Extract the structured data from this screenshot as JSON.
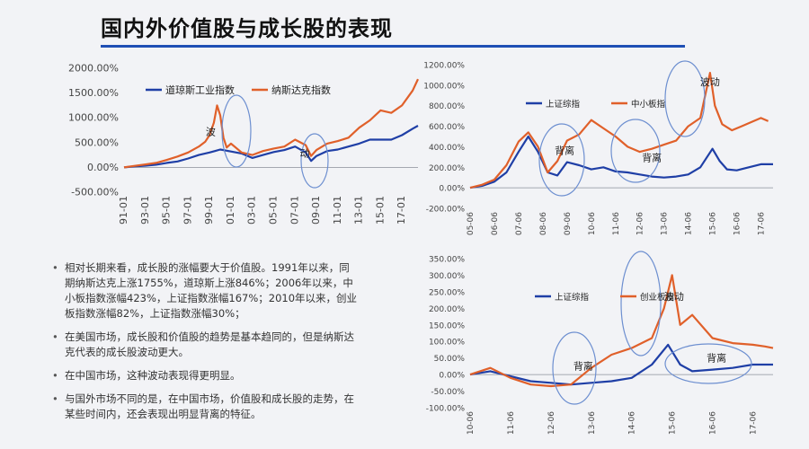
{
  "slide": {
    "title": "国内外价值股与成长股的表现"
  },
  "bullets": [
    "相对长期来看，成长股的涨幅要大于价值股。1991年以来，同期纳斯达克上涨1755%，道琼斯上涨846%；2006年以来，中小板指数涨幅423%，上证指数涨幅167%；2010年以来，创业板指数涨幅82%，上证指数涨幅30%；",
    "在美国市场，成长股和价值股的趋势是基本趋同的，但是纳斯达克代表的成长股波动更大。",
    "在中国市场，这种波动表现得更明显。",
    "与国外市场不同的是，在中国市场，价值股和成长股的走势，在某些时间内，还会表现出明显背离的特征。"
  ],
  "colors": {
    "blue_series": "#1f3fa6",
    "orange_series": "#e0602a",
    "ellipse": "#6d8fd0",
    "axis_text": "#444444",
    "grid": "#bfc3cc"
  },
  "chart_data": [
    {
      "id": "us",
      "type": "line",
      "title": "",
      "xlabel": "",
      "ylabel": "",
      "x_ticks": [
        "91-01",
        "93-01",
        "95-01",
        "97-01",
        "99-01",
        "01-01",
        "03-01",
        "05-01",
        "07-01",
        "09-01",
        "11-01",
        "13-01",
        "15-01",
        "17-01"
      ],
      "x_range": [
        0,
        27.5
      ],
      "ylim": [
        -500,
        2000
      ],
      "y_ticks": [
        -500,
        0,
        500,
        1000,
        1500,
        2000
      ],
      "y_tick_labels": [
        "-500.00%",
        "0.00%",
        "500.00%",
        "1000.00%",
        "1500.00%",
        "2000.00%"
      ],
      "grid": false,
      "legend": "top-left",
      "series": [
        {
          "name": "道琼斯工业指数",
          "color": "blue",
          "points": [
            [
              0,
              0
            ],
            [
              1,
              20
            ],
            [
              2,
              35
            ],
            [
              3,
              55
            ],
            [
              4,
              90
            ],
            [
              5,
              120
            ],
            [
              6,
              180
            ],
            [
              7,
              250
            ],
            [
              8,
              300
            ],
            [
              8.5,
              330
            ],
            [
              9,
              360
            ],
            [
              9.5,
              340
            ],
            [
              10,
              320
            ],
            [
              11,
              280
            ],
            [
              12,
              190
            ],
            [
              13,
              250
            ],
            [
              14,
              310
            ],
            [
              15,
              350
            ],
            [
              16,
              420
            ],
            [
              17,
              300
            ],
            [
              17.5,
              130
            ],
            [
              18,
              230
            ],
            [
              19,
              330
            ],
            [
              20,
              360
            ],
            [
              21,
              420
            ],
            [
              22,
              480
            ],
            [
              23,
              560
            ],
            [
              24,
              560
            ],
            [
              25,
              560
            ],
            [
              26,
              650
            ],
            [
              27,
              780
            ],
            [
              27.5,
              840
            ]
          ]
        },
        {
          "name": "纳斯达克指数",
          "color": "orange",
          "points": [
            [
              0,
              0
            ],
            [
              1,
              30
            ],
            [
              2,
              60
            ],
            [
              3,
              90
            ],
            [
              4,
              150
            ],
            [
              5,
              220
            ],
            [
              6,
              300
            ],
            [
              7,
              420
            ],
            [
              7.6,
              520
            ],
            [
              8,
              650
            ],
            [
              8.4,
              900
            ],
            [
              8.7,
              1250
            ],
            [
              9,
              1050
            ],
            [
              9.3,
              600
            ],
            [
              9.6,
              400
            ],
            [
              10,
              480
            ],
            [
              11,
              300
            ],
            [
              12,
              250
            ],
            [
              13,
              330
            ],
            [
              14,
              380
            ],
            [
              15,
              420
            ],
            [
              16,
              560
            ],
            [
              17,
              450
            ],
            [
              17.5,
              230
            ],
            [
              18,
              350
            ],
            [
              19,
              480
            ],
            [
              20,
              530
            ],
            [
              21,
              600
            ],
            [
              22,
              800
            ],
            [
              23,
              950
            ],
            [
              24,
              1150
            ],
            [
              25,
              1100
            ],
            [
              26,
              1250
            ],
            [
              27,
              1550
            ],
            [
              27.5,
              1780
            ]
          ]
        }
      ],
      "annotations": [
        {
          "text": "波",
          "x": 8.1,
          "y": 650
        },
        {
          "text": "动",
          "x": 16.9,
          "y": 220
        }
      ]
    },
    {
      "id": "sh_sme",
      "type": "line",
      "title": "",
      "xlabel": "",
      "ylabel": "",
      "x_ticks": [
        "05-06",
        "06-06",
        "07-06",
        "08-06",
        "09-06",
        "10-06",
        "11-06",
        "12-06",
        "13-06",
        "14-06",
        "15-06",
        "16-06",
        "17-06"
      ],
      "x_range": [
        0,
        12.5
      ],
      "ylim": [
        -200,
        1200
      ],
      "y_ticks": [
        -200,
        0,
        200,
        400,
        600,
        800,
        1000,
        1200
      ],
      "y_tick_labels": [
        "-200.00%",
        "0.00%",
        "200.00%",
        "400.00%",
        "600.00%",
        "800.00%",
        "1000.00%",
        "1200.00%"
      ],
      "grid": false,
      "legend": "top-left",
      "series": [
        {
          "name": "上证综指",
          "color": "blue",
          "points": [
            [
              0,
              0
            ],
            [
              0.5,
              20
            ],
            [
              1,
              60
            ],
            [
              1.5,
              150
            ],
            [
              2,
              350
            ],
            [
              2.4,
              500
            ],
            [
              2.8,
              350
            ],
            [
              3.2,
              150
            ],
            [
              3.6,
              120
            ],
            [
              4,
              250
            ],
            [
              4.5,
              220
            ],
            [
              5,
              180
            ],
            [
              5.5,
              200
            ],
            [
              6,
              160
            ],
            [
              6.5,
              150
            ],
            [
              7,
              130
            ],
            [
              7.5,
              110
            ],
            [
              8,
              100
            ],
            [
              8.5,
              110
            ],
            [
              9,
              130
            ],
            [
              9.5,
              200
            ],
            [
              10,
              380
            ],
            [
              10.3,
              260
            ],
            [
              10.6,
              180
            ],
            [
              11,
              170
            ],
            [
              11.5,
              200
            ],
            [
              12,
              230
            ],
            [
              12.5,
              230
            ]
          ]
        },
        {
          "name": "中小板指",
          "color": "orange",
          "points": [
            [
              0,
              0
            ],
            [
              0.5,
              30
            ],
            [
              1,
              80
            ],
            [
              1.5,
              220
            ],
            [
              2,
              450
            ],
            [
              2.4,
              540
            ],
            [
              2.8,
              400
            ],
            [
              3.2,
              150
            ],
            [
              3.6,
              260
            ],
            [
              4,
              460
            ],
            [
              4.5,
              520
            ],
            [
              5,
              660
            ],
            [
              5.5,
              580
            ],
            [
              6,
              500
            ],
            [
              6.5,
              400
            ],
            [
              7,
              350
            ],
            [
              7.5,
              380
            ],
            [
              8,
              420
            ],
            [
              8.5,
              460
            ],
            [
              9,
              600
            ],
            [
              9.5,
              680
            ],
            [
              9.9,
              1120
            ],
            [
              10.1,
              800
            ],
            [
              10.4,
              620
            ],
            [
              10.8,
              560
            ],
            [
              11.2,
              600
            ],
            [
              11.6,
              640
            ],
            [
              12,
              680
            ],
            [
              12.3,
              650
            ]
          ]
        }
      ],
      "annotations": [
        {
          "text": "背离",
          "x": 3.9,
          "y": 330
        },
        {
          "text": "背离",
          "x": 7.5,
          "y": 260
        },
        {
          "text": "波动",
          "x": 9.9,
          "y": 1000
        }
      ]
    },
    {
      "id": "sh_chinext",
      "type": "line",
      "title": "",
      "xlabel": "",
      "ylabel": "",
      "x_ticks": [
        "10-06",
        "11-06",
        "12-06",
        "13-06",
        "14-06",
        "15-06",
        "16-06",
        "17-06"
      ],
      "x_range": [
        0,
        7.5
      ],
      "ylim": [
        -100,
        350
      ],
      "y_ticks": [
        -100,
        -50,
        0,
        50,
        100,
        150,
        200,
        250,
        300,
        350
      ],
      "y_tick_labels": [
        "-100.00%",
        "-50.00%",
        "0.00%",
        "50.00%",
        "100.00%",
        "150.00%",
        "200.00%",
        "250.00%",
        "300.00%",
        "350.00%"
      ],
      "grid": false,
      "legend": "top-left",
      "series": [
        {
          "name": "上证综指",
          "color": "blue",
          "points": [
            [
              0,
              0
            ],
            [
              0.5,
              10
            ],
            [
              1,
              -5
            ],
            [
              1.5,
              -20
            ],
            [
              2,
              -25
            ],
            [
              2.5,
              -30
            ],
            [
              3,
              -25
            ],
            [
              3.5,
              -20
            ],
            [
              4,
              -10
            ],
            [
              4.5,
              30
            ],
            [
              4.9,
              90
            ],
            [
              5.2,
              30
            ],
            [
              5.5,
              10
            ],
            [
              6,
              15
            ],
            [
              6.5,
              20
            ],
            [
              7,
              30
            ],
            [
              7.5,
              30
            ]
          ]
        },
        {
          "name": "创业板指",
          "color": "orange",
          "points": [
            [
              0,
              0
            ],
            [
              0.5,
              20
            ],
            [
              1,
              -10
            ],
            [
              1.5,
              -30
            ],
            [
              2,
              -35
            ],
            [
              2.5,
              -30
            ],
            [
              3,
              20
            ],
            [
              3.5,
              60
            ],
            [
              4,
              80
            ],
            [
              4.5,
              110
            ],
            [
              4.8,
              200
            ],
            [
              5,
              300
            ],
            [
              5.2,
              150
            ],
            [
              5.5,
              180
            ],
            [
              6,
              110
            ],
            [
              6.5,
              95
            ],
            [
              7,
              90
            ],
            [
              7.3,
              85
            ],
            [
              7.5,
              80
            ]
          ]
        }
      ],
      "annotations": [
        {
          "text": "背离",
          "x": 2.8,
          "y": 15
        },
        {
          "text": "波动",
          "x": 5.05,
          "y": 225
        },
        {
          "text": "背离",
          "x": 6.1,
          "y": 40
        }
      ]
    }
  ]
}
